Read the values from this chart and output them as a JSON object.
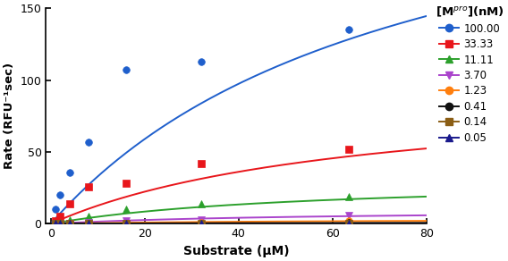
{
  "xlabel": "Substrate (μM)",
  "ylabel": "Rate (RFU⁻¹sec)",
  "xlim": [
    -1,
    80
  ],
  "ylim": [
    0,
    150
  ],
  "xticks": [
    0,
    20,
    40,
    60,
    80
  ],
  "yticks": [
    0,
    50,
    100,
    150
  ],
  "series": [
    {
      "label": "100.00",
      "color": "#1F5FCC",
      "marker": "o",
      "markersize": 5.5,
      "Vmax": 280.0,
      "Km": 75.0,
      "data_x": [
        1,
        2,
        4,
        8,
        16,
        32,
        63.5
      ],
      "data_y": [
        10,
        20,
        36,
        57,
        107,
        113,
        135
      ]
    },
    {
      "label": "33.33",
      "color": "#E8161B",
      "marker": "s",
      "markersize": 5.5,
      "Vmax": 95.0,
      "Km": 65.0,
      "data_x": [
        1,
        2,
        4,
        8,
        16,
        32,
        63.5
      ],
      "data_y": [
        2,
        5,
        14,
        26,
        28,
        42,
        52
      ]
    },
    {
      "label": "11.11",
      "color": "#2CA02C",
      "marker": "^",
      "markersize": 5.5,
      "Vmax": 32.0,
      "Km": 55.0,
      "data_x": [
        1,
        2,
        4,
        8,
        16,
        32,
        63.5
      ],
      "data_y": [
        0.5,
        1,
        3,
        5,
        10,
        14,
        19
      ]
    },
    {
      "label": "3.70",
      "color": "#AA44CC",
      "marker": "v",
      "markersize": 5.5,
      "Vmax": 10.0,
      "Km": 55.0,
      "data_x": [
        1,
        2,
        4,
        8,
        16,
        32,
        63.5
      ],
      "data_y": [
        0,
        0,
        0.5,
        1,
        2,
        3,
        6
      ]
    },
    {
      "label": "1.23",
      "color": "#FF7F0E",
      "marker": "o",
      "markersize": 5.5,
      "Vmax": 3.5,
      "Km": 55.0,
      "data_x": [
        1,
        2,
        4,
        8,
        16,
        32,
        63.5
      ],
      "data_y": [
        0,
        0,
        0,
        0,
        0.5,
        1,
        2
      ]
    },
    {
      "label": "0.41",
      "color": "#111111",
      "marker": "o",
      "markersize": 5.5,
      "Vmax": 1.2,
      "Km": 55.0,
      "data_x": [
        1,
        2,
        4,
        8,
        16,
        32,
        63.5
      ],
      "data_y": [
        0,
        0,
        0,
        0,
        0,
        0.3,
        0.8
      ]
    },
    {
      "label": "0.14",
      "color": "#8B5E15",
      "marker": "s",
      "markersize": 5.5,
      "Vmax": 0.5,
      "Km": 55.0,
      "data_x": [
        1,
        2,
        4,
        8,
        16,
        32,
        63.5
      ],
      "data_y": [
        0,
        0,
        0,
        0,
        0,
        0.1,
        0.3
      ]
    },
    {
      "label": "0.05",
      "color": "#1A1A8C",
      "marker": "^",
      "markersize": 5.5,
      "Vmax": 0.2,
      "Km": 55.0,
      "data_x": [
        1,
        2,
        4,
        8,
        16,
        32,
        63.5
      ],
      "data_y": [
        0,
        0,
        0,
        0,
        0,
        0.05,
        0.1
      ]
    }
  ],
  "legend_title": "[M$^{pro}$](nM)",
  "fig_width": 5.68,
  "fig_height": 2.92,
  "dpi": 100
}
